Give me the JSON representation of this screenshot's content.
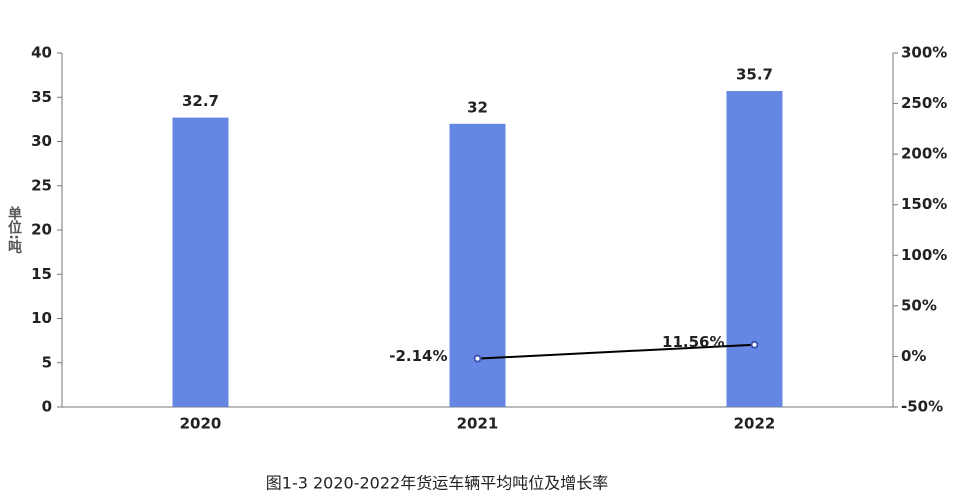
{
  "chart_data": {
    "type": "bar-line",
    "title": "图1-3 2020-2022年货运车辆平均吨位及增长率",
    "y_label": "单位:吨",
    "categories": [
      "2020",
      "2021",
      "2022"
    ],
    "series": [
      {
        "type": "bar",
        "color": "#6586e3",
        "values": [
          32.7,
          32,
          35.7
        ]
      },
      {
        "type": "line",
        "axis": "y2",
        "color": "#000000",
        "marker_color": "#3a55b0",
        "values": [
          null,
          -2.14,
          11.56
        ],
        "value_labels": [
          null,
          "-2.14%",
          "11.56%"
        ]
      }
    ],
    "ylim": [
      0,
      40
    ],
    "yticks": [
      0,
      5,
      10,
      15,
      20,
      25,
      30,
      35,
      40
    ],
    "y2lim": [
      -50,
      300
    ],
    "y2ticks": [
      {
        "value": -50,
        "label": "-50%"
      },
      {
        "value": 0,
        "label": "0%"
      },
      {
        "value": 50,
        "label": "50%"
      },
      {
        "value": 100,
        "label": "100%"
      },
      {
        "value": 150,
        "label": "150%"
      },
      {
        "value": 200,
        "label": "200%"
      },
      {
        "value": 250,
        "label": "250%"
      },
      {
        "value": 300,
        "label": "300%"
      }
    ],
    "grid": false
  }
}
